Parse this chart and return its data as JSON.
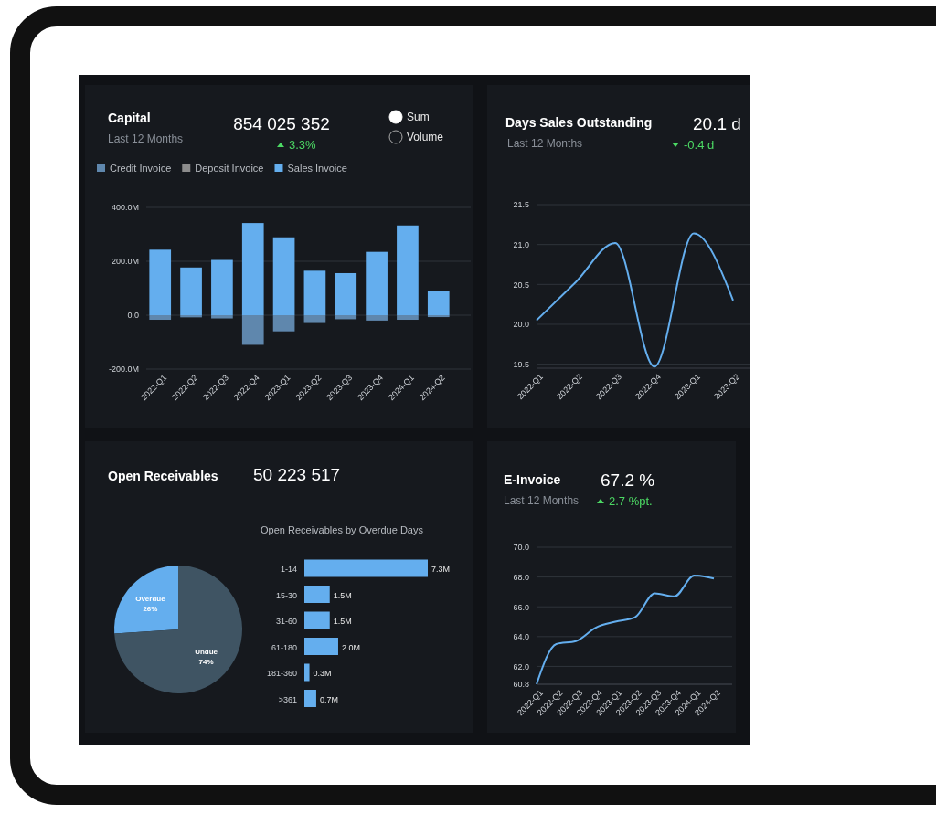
{
  "chart_data": [
    {
      "type": "bar",
      "title": "Capital",
      "subtitle": "Last 12 Months",
      "annotations": [
        "854 025 352",
        "3.3%",
        "Sum",
        "Volume"
      ],
      "categories": [
        "2022-Q1",
        "2022-Q2",
        "2022-Q3",
        "2022-Q4",
        "2023-Q1",
        "2023-Q2",
        "2023-Q3",
        "2023-Q4",
        "2024-Q1",
        "2024-Q2"
      ],
      "stacked": true,
      "series": [
        {
          "name": "Credit Invoice",
          "color": "#5f87ad",
          "values": [
            -17,
            -8,
            -12,
            -110,
            -60,
            -29,
            -15,
            -20,
            -17,
            -7
          ]
        },
        {
          "name": "Deposit Invoice",
          "color": "#8c8c8c",
          "values": [
            null,
            null,
            null,
            null,
            null,
            null,
            null,
            null,
            null,
            null
          ]
        },
        {
          "name": "Sales Invoice",
          "color": "#64aeee",
          "values": [
            243,
            177,
            205,
            342,
            289,
            165,
            156,
            235,
            333,
            90
          ]
        }
      ],
      "ylim": [
        -200,
        400
      ],
      "yticks": [
        {
          "value": -200,
          "label": "-200.0M"
        },
        {
          "value": 0,
          "label": "0.0"
        },
        {
          "value": 200,
          "label": "200.0M"
        },
        {
          "value": 400,
          "label": "400.0M"
        }
      ],
      "grid": "y",
      "legend": "top left"
    },
    {
      "type": "line",
      "title": "Days Sales Outstanding",
      "subtitle": "Last 12 Months",
      "annotations": [
        "20.1 d",
        "-0.4 d"
      ],
      "categories": [
        "2022-Q1",
        "2022-Q2",
        "2022-Q3",
        "2022-Q4",
        "2023-Q1",
        "2023-Q2"
      ],
      "series": [
        {
          "color": "#64aeee",
          "values": [
            20.05,
            20.53,
            21.02,
            19.47,
            21.14,
            20.3
          ]
        }
      ],
      "ylim": [
        19.45,
        21.5
      ],
      "yticks": [
        {
          "value": 19.5,
          "label": "19.5"
        },
        {
          "value": 20,
          "label": "20.0"
        },
        {
          "value": 20.5,
          "label": "20.5"
        },
        {
          "value": 21,
          "label": "21.0"
        },
        {
          "value": 21.5,
          "label": "21.5"
        }
      ],
      "grid": "y"
    },
    {
      "type": "pie",
      "title": "Open Receivables",
      "annotations": [
        "50 223 517"
      ],
      "categories": [
        "Overdue",
        "Undue"
      ],
      "values": [
        26,
        74
      ],
      "colors": [
        "#64aeee",
        "#3f5463"
      ],
      "value_labels": [
        "26%",
        "74%"
      ]
    },
    {
      "type": "bar",
      "orientation": "horizontal",
      "title": "Open Receivables by Overdue Days",
      "categories": [
        "1-14",
        "15-30",
        "31-60",
        "61-180",
        "181-360",
        ">361"
      ],
      "values": [
        7.3,
        1.5,
        1.5,
        2.0,
        0.3,
        0.7
      ],
      "color": "#64aeee",
      "value_labels": [
        "7.3M",
        "1.5M",
        "1.5M",
        "2.0M",
        "0.3M",
        "0.7M"
      ]
    },
    {
      "type": "line",
      "title": "E-Invoice",
      "subtitle": "Last 12 Months",
      "annotations": [
        "67.2 %",
        "2.7 %pt."
      ],
      "categories": [
        "2022-Q1",
        "2022-Q2",
        "2022-Q3",
        "2022-Q4",
        "2023-Q1",
        "2023-Q2",
        "2023-Q3",
        "2023-Q4",
        "2024-Q1",
        "2024-Q2"
      ],
      "series": [
        {
          "color": "#64aeee",
          "values": [
            60.8,
            63.5,
            63.7,
            64.6,
            65.0,
            65.3,
            66.9,
            66.7,
            68.1,
            67.9
          ]
        }
      ],
      "ylim": [
        60.8,
        70
      ],
      "yticks": [
        {
          "value": 60.8,
          "label": "60.8"
        },
        {
          "value": 62,
          "label": "62.0"
        },
        {
          "value": 64,
          "label": "64.0"
        },
        {
          "value": 66,
          "label": "66.0"
        },
        {
          "value": 68,
          "label": "68.0"
        },
        {
          "value": 70,
          "label": "70.0"
        }
      ],
      "grid": "y"
    }
  ]
}
